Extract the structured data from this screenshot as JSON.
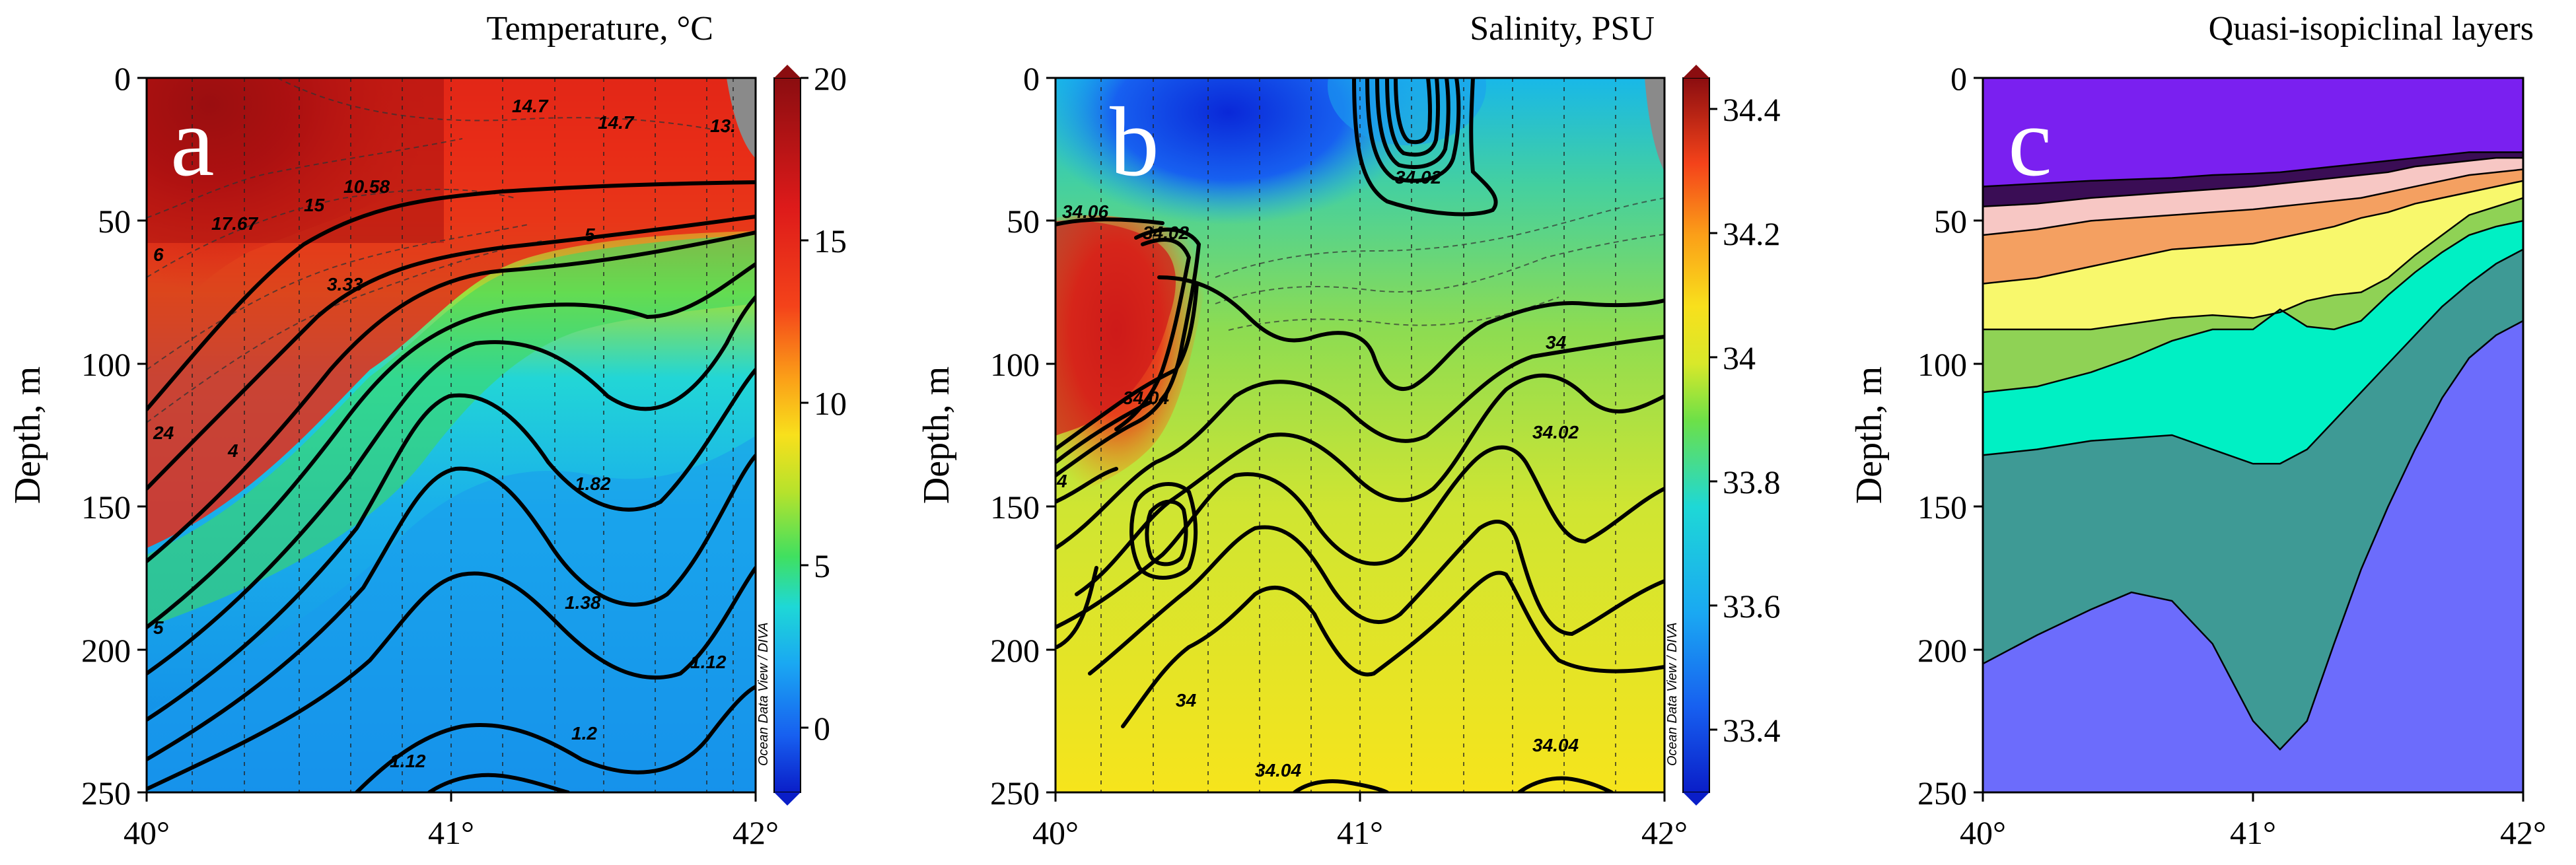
{
  "chart_data": [
    {
      "panel": "a",
      "type": "heatmap",
      "title": "Temperature, °C",
      "ylabel": "Depth, m",
      "xlabel": "",
      "xlim": [
        40,
        42
      ],
      "ylim": [
        250,
        0
      ],
      "xticks": [
        "40°",
        "41°",
        "42°"
      ],
      "yticks": [
        "0",
        "50",
        "100",
        "150",
        "200",
        "250"
      ],
      "colorbar": {
        "range": [
          -2,
          20
        ],
        "ticks": [
          "20",
          "15",
          "10",
          "5",
          "0"
        ]
      },
      "stations_lon": [
        40.15,
        40.32,
        40.5,
        40.67,
        40.84,
        41.0,
        41.17,
        41.34,
        41.5,
        41.67,
        41.84,
        41.93
      ],
      "contour_labels": [
        "14.7",
        "14.7",
        "15",
        "10.58",
        "17.67",
        "5",
        "3.33",
        "4",
        "1.82",
        "1.38",
        "1.12",
        "1.2",
        "1.12",
        "13.",
        "6",
        "24",
        "5"
      ],
      "source_note": "Ocean Data View / DIVA"
    },
    {
      "panel": "b",
      "type": "heatmap",
      "title": "Salinity, PSU",
      "ylabel": "Depth, m",
      "xlabel": "",
      "xlim": [
        40,
        42
      ],
      "ylim": [
        250,
        0
      ],
      "xticks": [
        "40°",
        "41°",
        "42°"
      ],
      "yticks": [
        "0",
        "50",
        "100",
        "150",
        "200",
        "250"
      ],
      "colorbar": {
        "range": [
          33.3,
          34.45
        ],
        "ticks": [
          "34.4",
          "34.2",
          "34",
          "33.8",
          "33.6",
          "33.4"
        ]
      },
      "stations_lon": [
        40.15,
        40.32,
        40.5,
        40.67,
        40.84,
        41.0,
        41.17,
        41.34,
        41.5,
        41.67,
        41.84
      ],
      "contour_labels": [
        "34.06",
        "34.02",
        "34.02",
        "34.04",
        "34",
        "34.02",
        "34",
        "34.04",
        "34.04",
        "4"
      ],
      "source_note": "Ocean Data View / DIVA"
    },
    {
      "panel": "c",
      "type": "area",
      "title": "Quasi-isopiclinal layers",
      "ylabel": "Depth, m",
      "xlabel": "",
      "xlim": [
        40,
        42
      ],
      "ylim": [
        250,
        0
      ],
      "xticks": [
        "40°",
        "41°",
        "42°"
      ],
      "yticks": [
        "0",
        "50",
        "100",
        "150",
        "200",
        "250"
      ],
      "x": [
        40.0,
        40.2,
        40.4,
        40.55,
        40.7,
        40.85,
        41.0,
        41.1,
        41.2,
        41.3,
        41.4,
        41.5,
        41.6,
        41.7,
        41.8,
        41.9,
        42.0
      ],
      "boundaries": [
        {
          "name": "layer-1-bottom",
          "depths": [
            38,
            37,
            36,
            35.5,
            35,
            34,
            33.5,
            33,
            32,
            31,
            30,
            29,
            28,
            27,
            26,
            26,
            26
          ],
          "color": "#8f32d0"
        },
        {
          "name": "layer-2-bottom",
          "depths": [
            45,
            44,
            42,
            41,
            40,
            39,
            38,
            37,
            36,
            35,
            34,
            33,
            31,
            30,
            29,
            28,
            28
          ],
          "color": "#3a0d55"
        },
        {
          "name": "layer-3-bottom",
          "depths": [
            55,
            53,
            50,
            49,
            48,
            47,
            46,
            45,
            44,
            43,
            42,
            40,
            38,
            36,
            34,
            33,
            32
          ],
          "color": "#f7c7c4"
        },
        {
          "name": "layer-4-bottom",
          "depths": [
            72,
            70,
            66,
            63,
            60,
            59,
            58,
            56,
            54,
            52,
            49,
            47,
            44,
            42,
            40,
            38,
            36
          ],
          "color": "#f4a061"
        },
        {
          "name": "layer-5-bottom",
          "depths": [
            88,
            88,
            88,
            86,
            84,
            83,
            84,
            82,
            78,
            76,
            75,
            70,
            62,
            55,
            48,
            45,
            42
          ],
          "color": "#f8f86c"
        },
        {
          "name": "layer-6-bottom",
          "depths": [
            110,
            108,
            103,
            98,
            92,
            88,
            88,
            81,
            87,
            88,
            85,
            76,
            68,
            61,
            55,
            52,
            50
          ],
          "color": "#8fd255"
        },
        {
          "name": "layer-7-bottom",
          "depths": [
            132,
            130,
            127,
            126,
            125,
            130,
            135,
            135,
            130,
            120,
            110,
            100,
            90,
            80,
            72,
            65,
            60
          ],
          "color": "#00f0c4"
        },
        {
          "name": "layer-8-bottom",
          "depths": [
            205,
            195,
            186,
            180,
            183,
            198,
            225,
            235,
            225,
            198,
            172,
            150,
            130,
            112,
            98,
            90,
            85
          ],
          "color": "#3e9a95"
        },
        {
          "name": "layer-9-bottom",
          "depths": [
            250,
            250,
            250,
            250,
            250,
            250,
            250,
            250,
            250,
            250,
            250,
            250,
            250,
            250,
            250,
            250,
            250
          ],
          "color": "#6c6cfc"
        }
      ]
    }
  ],
  "panel_labels": {
    "a": "a",
    "b": "b",
    "c": "c"
  }
}
